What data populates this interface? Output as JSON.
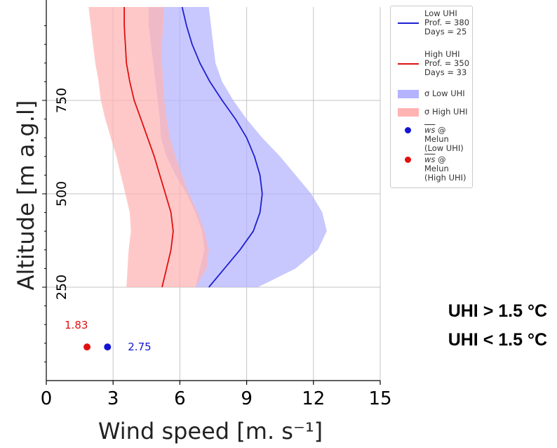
{
  "chart_data": {
    "type": "line",
    "xlabel": "Wind speed [m. s⁻¹]",
    "ylabel": "Altitude [m a.g.l]",
    "xlim": [
      0,
      15
    ],
    "ylim": [
      0,
      1000
    ],
    "xticks": [
      "0",
      "3",
      "6",
      "9",
      "12",
      "15"
    ],
    "yticks": [
      "250",
      "500",
      "750"
    ],
    "grid": true,
    "legend_position": "upper-right-outside",
    "series": [
      {
        "name": "Low UHI",
        "stats": "Prof. = 380\nDays = 25",
        "color": "#1f1fd1",
        "x": [
          7.3,
          8.0,
          8.7,
          9.3,
          9.6,
          9.7,
          9.6,
          9.35,
          9.0,
          8.5,
          7.9,
          7.35,
          6.9,
          6.55,
          6.3,
          6.1
        ],
        "y": [
          250,
          300,
          350,
          400,
          450,
          500,
          550,
          600,
          650,
          700,
          750,
          800,
          850,
          900,
          950,
          1000
        ]
      },
      {
        "name": "High UHI",
        "stats": "Prof. = 350\nDays = 33",
        "color": "#e01010",
        "x": [
          5.2,
          5.4,
          5.6,
          5.7,
          5.6,
          5.35,
          5.1,
          4.85,
          4.55,
          4.25,
          3.95,
          3.75,
          3.6,
          3.55,
          3.5,
          3.5
        ],
        "y": [
          250,
          300,
          350,
          400,
          450,
          500,
          550,
          600,
          650,
          700,
          750,
          800,
          850,
          900,
          950,
          1000
        ]
      }
    ],
    "bands": [
      {
        "name": "σ Low UHI",
        "color": "#b3b3ff",
        "y": [
          250,
          300,
          350,
          400,
          450,
          500,
          550,
          600,
          650,
          700,
          750,
          800,
          850,
          900,
          950,
          1000
        ],
        "lower": [
          6.7,
          6.9,
          7.1,
          7.0,
          6.7,
          6.3,
          5.8,
          5.4,
          5.15,
          5.1,
          5.0,
          4.9,
          4.8,
          4.7,
          4.6,
          4.6
        ],
        "upper": [
          9.5,
          11.2,
          12.2,
          12.6,
          12.4,
          11.9,
          11.2,
          10.5,
          9.7,
          9.0,
          8.4,
          7.9,
          7.6,
          7.5,
          7.4,
          7.3
        ]
      },
      {
        "name": "σ High UHI",
        "color": "#ffb3b3",
        "y": [
          250,
          300,
          350,
          400,
          450,
          500,
          550,
          600,
          650,
          700,
          750,
          800,
          850,
          900,
          950,
          1000
        ],
        "lower": [
          3.6,
          3.65,
          3.7,
          3.8,
          3.75,
          3.55,
          3.35,
          3.15,
          2.9,
          2.65,
          2.45,
          2.35,
          2.2,
          2.1,
          2.0,
          1.9
        ],
        "upper": [
          6.7,
          7.2,
          7.3,
          7.1,
          6.8,
          6.4,
          6.1,
          5.8,
          5.55,
          5.4,
          5.3,
          5.25,
          5.2,
          5.2,
          5.25,
          5.3
        ]
      }
    ],
    "points": [
      {
        "name": "ws @ Melun",
        "group": "(Low UHI)",
        "x": 2.75,
        "y": 90,
        "label": "2.75",
        "color": "#1414d4"
      },
      {
        "name": "ws @ Melun",
        "group": "(High UHI)",
        "x": 1.83,
        "y": 90,
        "label": "1.83",
        "color": "#e01010"
      }
    ],
    "annotations": [
      {
        "text": "UHI > 1.5 °C",
        "color": "#e8151b"
      },
      {
        "text": "UHI < 1.5 °C",
        "color": "#1a4fd6"
      }
    ]
  },
  "legend": {
    "items": [
      {
        "type": "line",
        "label": "Low UHI\nProf. = 380\nDays = 25",
        "color": "#1f1fd1"
      },
      {
        "type": "line",
        "label": "High UHI\nProf. = 350\nDays = 33",
        "color": "#e01010"
      },
      {
        "type": "patch",
        "label": "σ Low UHI",
        "color": "#b3b3ff"
      },
      {
        "type": "patch",
        "label": "σ High UHI",
        "color": "#ffb3b3"
      },
      {
        "type": "marker",
        "label": "ws @ Melun\n(Low UHI)",
        "color": "#1414d4"
      },
      {
        "type": "marker",
        "label": "ws @ Melun\n(High UHI)",
        "color": "#e01010"
      }
    ]
  }
}
